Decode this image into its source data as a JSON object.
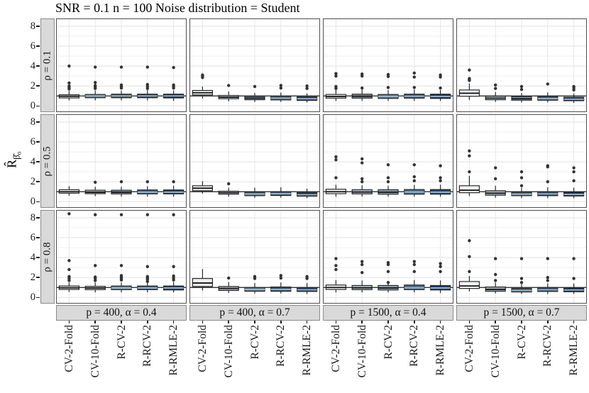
{
  "chart_data": {
    "type": "boxplot",
    "title": "SNR = 0.1 n = 100 Noise distribution = Student",
    "ylabel": "R̂_β̂o",
    "ylabel_parts": {
      "base": "R̂",
      "sub": "β̂",
      "subsub": "o"
    },
    "row_labels": [
      "ρ = 0.1",
      "ρ = 0.5",
      "ρ = 0.8"
    ],
    "col_labels": [
      "p = 400, α = 0.4",
      "p = 400, α = 0.7",
      "p = 1500, α = 0.4",
      "p = 1500, α = 0.7"
    ],
    "categories": [
      "CV-2-Fold",
      "CV-10-Fold",
      "R-CV-2",
      "R-RCV-2",
      "R-RMLE-2"
    ],
    "y_ticks": [
      0,
      2,
      4,
      6,
      8
    ],
    "y_domain": [
      -0.62,
      8.78
    ],
    "reference_line_y": 1,
    "x_tick_rotation": 90,
    "grid": "on",
    "legend": "none",
    "colors": {
      "strip_bg": "#D9D9D9",
      "strip_border": "#8A8A8A",
      "panel_border": "#4F4F4F",
      "box_stroke": "#2A2A2A",
      "outlier": "#333333",
      "ref_line": "#1A1A1A",
      "grid_major": "#E1E1E1",
      "grid_minor": "#EFEFEF",
      "grid_vertical": "#E7E7E7",
      "median_dark": "#141414",
      "median_light": "#9BB8CB"
    },
    "panels": [
      [
        {
          "boxes": [
            {
              "s": [
                0.55,
                0.8,
                0.97,
                1.12,
                1.5
              ],
              "o": [
                1.7,
                1.85,
                2.0,
                2.3,
                4.0
              ],
              "f": "#F5F5F5"
            },
            {
              "s": [
                0.55,
                0.82,
                1.0,
                1.15,
                1.55
              ],
              "o": [
                1.75,
                1.9,
                2.05,
                2.35,
                3.9
              ],
              "f": "#6F7880"
            },
            {
              "s": [
                0.55,
                0.82,
                1.0,
                1.18,
                1.55
              ],
              "o": [
                1.8,
                1.95,
                2.1,
                3.9
              ],
              "f": "#46525B"
            },
            {
              "s": [
                0.55,
                0.82,
                1.0,
                1.18,
                1.6
              ],
              "o": [
                1.75,
                1.95,
                2.15,
                3.9
              ],
              "f": "#2F4058"
            },
            {
              "s": [
                0.5,
                0.8,
                1.0,
                1.18,
                1.55
              ],
              "o": [
                1.8,
                1.95,
                2.1,
                3.85
              ],
              "f": "#1F3150"
            }
          ]
        },
        {
          "boxes": [
            {
              "s": [
                0.75,
                1.1,
                1.32,
                1.55,
                1.95
              ],
              "o": [
                2.85,
                3.0,
                3.1
              ],
              "f": "#F2F4F5"
            },
            {
              "s": [
                0.45,
                0.72,
                0.88,
                1.05,
                1.45
              ],
              "o": [
                2.05
              ],
              "f": "#C3D0DA"
            },
            {
              "s": [
                0.4,
                0.62,
                0.78,
                0.95,
                1.3
              ],
              "o": [
                1.95
              ],
              "f": "#7C97A8"
            },
            {
              "s": [
                0.4,
                0.6,
                0.78,
                0.97,
                1.35
              ],
              "o": [
                1.8,
                2.05
              ],
              "f": "#49586B"
            },
            {
              "s": [
                0.35,
                0.55,
                0.72,
                0.9,
                1.25
              ],
              "o": [
                1.75,
                2.0
              ],
              "f": "#1F3B66"
            }
          ]
        },
        {
          "boxes": [
            {
              "s": [
                0.5,
                0.78,
                0.95,
                1.15,
                1.6
              ],
              "o": [
                1.75,
                1.95,
                3.0,
                3.25
              ],
              "f": "#EFEFEF"
            },
            {
              "s": [
                0.5,
                0.78,
                0.97,
                1.18,
                1.65
              ],
              "o": [
                1.8,
                3.0,
                3.2
              ],
              "f": "#8E9AA3"
            },
            {
              "s": [
                0.5,
                0.75,
                0.95,
                1.15,
                1.6
              ],
              "o": [
                1.85,
                2.95,
                3.15
              ],
              "f": "#5F7180"
            },
            {
              "s": [
                0.5,
                0.78,
                0.97,
                1.18,
                1.65
              ],
              "o": [
                1.85,
                2.9,
                3.3
              ],
              "f": "#3A506B"
            },
            {
              "s": [
                0.5,
                0.75,
                0.95,
                1.18,
                1.6
              ],
              "o": [
                1.8,
                2.9,
                3.1
              ],
              "f": "#1E3352"
            }
          ]
        },
        {
          "boxes": [
            {
              "s": [
                0.6,
                0.97,
                1.27,
                1.6,
                2.25
              ],
              "o": [
                2.55,
                2.65,
                2.75,
                3.6
              ],
              "f": "#F4F6F7"
            },
            {
              "s": [
                0.4,
                0.62,
                0.78,
                0.97,
                1.4
              ],
              "o": [
                1.75,
                2.1
              ],
              "f": "#C5D2DC"
            },
            {
              "s": [
                0.35,
                0.57,
                0.72,
                0.92,
                1.3
              ],
              "o": [
                1.65,
                1.95
              ],
              "f": "#8FA7B8"
            },
            {
              "s": [
                0.35,
                0.57,
                0.73,
                0.95,
                1.35
              ],
              "o": [
                2.2
              ],
              "f": "#42596E"
            },
            {
              "s": [
                0.3,
                0.52,
                0.67,
                0.87,
                1.25
              ],
              "o": [
                1.6,
                1.8,
                1.95
              ],
              "f": "#1C3A66"
            }
          ]
        }
      ],
      [
        {
          "boxes": [
            {
              "s": [
                0.6,
                0.85,
                1.0,
                1.2,
                1.55
              ],
              "o": [],
              "f": "#F3F3F3"
            },
            {
              "s": [
                0.55,
                0.8,
                0.95,
                1.15,
                1.5
              ],
              "o": [
                1.95
              ],
              "f": "#AEB9C0"
            },
            {
              "s": [
                0.5,
                0.78,
                0.95,
                1.15,
                1.5
              ],
              "o": [
                2.0
              ],
              "f": "#7C99AC"
            },
            {
              "s": [
                0.5,
                0.78,
                0.95,
                1.18,
                1.55
              ],
              "o": [
                2.0
              ],
              "f": "#3F6186"
            },
            {
              "s": [
                0.5,
                0.78,
                0.95,
                1.18,
                1.6
              ],
              "o": [
                2.0
              ],
              "f": "#27415E"
            }
          ]
        },
        {
          "boxes": [
            {
              "s": [
                0.8,
                1.1,
                1.35,
                1.6,
                2.05
              ],
              "o": [],
              "f": "#F3F4F5"
            },
            {
              "s": [
                0.5,
                0.75,
                0.9,
                1.05,
                1.4
              ],
              "o": [
                1.8
              ],
              "f": "#B9C6D0"
            },
            {
              "s": [
                0.4,
                0.6,
                0.77,
                0.95,
                1.4
              ],
              "o": [],
              "f": "#5C6B7A"
            },
            {
              "s": [
                0.4,
                0.62,
                0.8,
                1.0,
                1.45
              ],
              "o": [],
              "f": "#3C4F66"
            },
            {
              "s": [
                0.35,
                0.55,
                0.7,
                0.9,
                1.3
              ],
              "o": [],
              "f": "#20324E"
            }
          ]
        },
        {
          "boxes": [
            {
              "s": [
                0.5,
                0.8,
                1.0,
                1.25,
                1.7
              ],
              "o": [
                2.4,
                4.2,
                4.5
              ],
              "f": "#EFF1F2"
            },
            {
              "s": [
                0.5,
                0.78,
                0.97,
                1.2,
                1.65
              ],
              "o": [
                2.0,
                2.3,
                3.9,
                4.3
              ],
              "f": "#AFBEC9"
            },
            {
              "s": [
                0.5,
                0.75,
                0.95,
                1.2,
                1.6
              ],
              "o": [
                2.0,
                2.4,
                3.7
              ],
              "f": "#84A0B2"
            },
            {
              "s": [
                0.5,
                0.75,
                0.97,
                1.22,
                1.68
              ],
              "o": [
                2.1,
                2.5,
                3.7
              ],
              "f": "#4A6C8E"
            },
            {
              "s": [
                0.5,
                0.75,
                0.95,
                1.22,
                1.7
              ],
              "o": [
                2.1,
                2.4,
                3.6
              ],
              "f": "#24466E"
            }
          ]
        },
        {
          "boxes": [
            {
              "s": [
                0.55,
                0.9,
                1.15,
                1.6,
                2.6
              ],
              "o": [
                3.0,
                4.6,
                5.1
              ],
              "f": "#F0F2F3"
            },
            {
              "s": [
                0.4,
                0.65,
                0.85,
                1.1,
                1.6
              ],
              "o": [
                2.3,
                3.4
              ],
              "f": "#A9B6BF"
            },
            {
              "s": [
                0.35,
                0.6,
                0.75,
                0.95,
                1.4
              ],
              "o": [
                1.6,
                2.4,
                3.0
              ],
              "f": "#55646F"
            },
            {
              "s": [
                0.35,
                0.6,
                0.78,
                1.0,
                1.45
              ],
              "o": [
                2.0,
                3.5,
                3.6
              ],
              "f": "#354A5F"
            },
            {
              "s": [
                0.35,
                0.57,
                0.73,
                0.95,
                1.4
              ],
              "o": [
                2.1,
                3.0,
                3.4
              ],
              "f": "#1C3150"
            }
          ]
        }
      ],
      [
        {
          "boxes": [
            {
              "s": [
                0.55,
                0.8,
                0.97,
                1.15,
                1.5
              ],
              "o": [
                1.7,
                1.9,
                2.1,
                2.8,
                3.7,
                8.4
              ],
              "f": "#F4F4F4"
            },
            {
              "s": [
                0.5,
                0.78,
                0.95,
                1.12,
                1.5
              ],
              "o": [
                1.7,
                1.9,
                2.05,
                3.2,
                8.3
              ],
              "f": "#C9D3DA"
            },
            {
              "s": [
                0.5,
                0.78,
                0.95,
                1.15,
                1.5
              ],
              "o": [
                1.75,
                1.9,
                2.05,
                2.2,
                3.2,
                8.3
              ],
              "f": "#62788A"
            },
            {
              "s": [
                0.5,
                0.78,
                0.95,
                1.15,
                1.55
              ],
              "o": [
                1.6,
                1.8,
                1.95,
                2.1,
                3.1,
                8.3
              ],
              "f": "#39597B"
            },
            {
              "s": [
                0.5,
                0.75,
                0.95,
                1.15,
                1.55
              ],
              "o": [
                1.75,
                1.95,
                2.15,
                3.1,
                8.3
              ],
              "f": "#1F3A5F"
            }
          ]
        },
        {
          "boxes": [
            {
              "s": [
                0.7,
                1.1,
                1.45,
                1.9,
                2.85
              ],
              "o": [],
              "f": "#F2F3F4"
            },
            {
              "s": [
                0.45,
                0.7,
                0.9,
                1.1,
                1.55
              ],
              "o": [
                1.95
              ],
              "f": "#ABB8C2"
            },
            {
              "s": [
                0.4,
                0.62,
                0.8,
                1.0,
                1.45
              ],
              "o": [
                1.9,
                2.1
              ],
              "f": "#5E707E"
            },
            {
              "s": [
                0.4,
                0.62,
                0.8,
                1.05,
                1.5
              ],
              "o": [
                1.95,
                2.2
              ],
              "f": "#3A4E63"
            },
            {
              "s": [
                0.35,
                0.6,
                0.77,
                1.0,
                1.45
              ],
              "o": [
                1.9,
                2.1
              ],
              "f": "#22395A"
            }
          ]
        },
        {
          "boxes": [
            {
              "s": [
                0.5,
                0.8,
                1.0,
                1.25,
                1.75
              ],
              "o": [
                2.8,
                3.2,
                3.9
              ],
              "f": "#F1F2F3"
            },
            {
              "s": [
                0.5,
                0.78,
                0.97,
                1.2,
                1.7
              ],
              "o": [
                2.5,
                3.3,
                3.6
              ],
              "f": "#B4C1CB"
            },
            {
              "s": [
                0.5,
                0.75,
                0.95,
                1.2,
                1.65
              ],
              "o": [
                1.5,
                2.6,
                3.3,
                3.5
              ],
              "f": "#8BA5B6"
            },
            {
              "s": [
                0.5,
                0.78,
                0.97,
                1.25,
                1.75
              ],
              "o": [
                2.6,
                3.3,
                3.6
              ],
              "f": "#48688A"
            },
            {
              "s": [
                0.45,
                0.75,
                0.95,
                1.2,
                1.7
              ],
              "o": [
                2.6,
                3.1,
                3.4
              ],
              "f": "#1F3C63"
            }
          ]
        },
        {
          "boxes": [
            {
              "s": [
                0.6,
                0.9,
                1.15,
                1.6,
                2.15
              ],
              "o": [
                2.6,
                4.1,
                5.7
              ],
              "f": "#F2F3F4"
            },
            {
              "s": [
                0.4,
                0.62,
                0.8,
                1.05,
                1.5
              ],
              "o": [
                1.7,
                2.3,
                3.9
              ],
              "f": "#9FACB6"
            },
            {
              "s": [
                0.35,
                0.55,
                0.7,
                0.9,
                1.35
              ],
              "o": [
                1.5,
                1.9,
                3.9
              ],
              "f": "#4E5D69"
            },
            {
              "s": [
                0.35,
                0.6,
                0.77,
                1.0,
                1.4
              ],
              "o": [
                1.7,
                2.0,
                3.9
              ],
              "f": "#35485C"
            },
            {
              "s": [
                0.35,
                0.57,
                0.75,
                0.97,
                1.4
              ],
              "o": [
                1.9,
                3.9
              ],
              "f": "#1C3150"
            }
          ]
        }
      ]
    ]
  }
}
